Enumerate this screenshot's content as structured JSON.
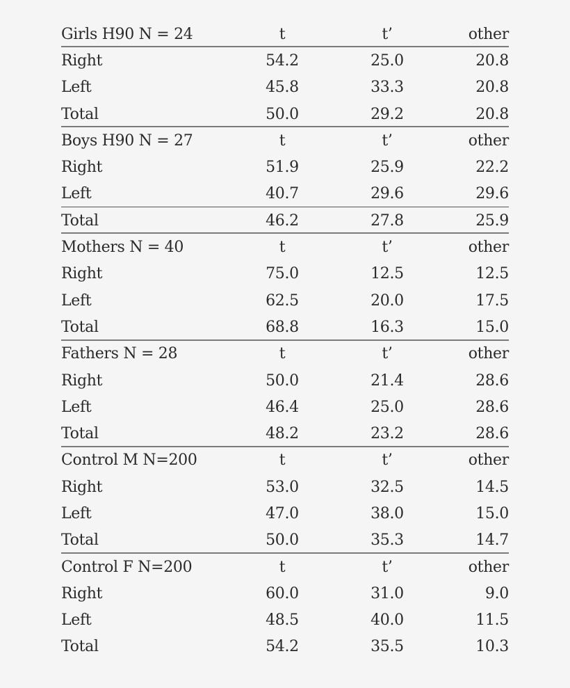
{
  "columns": [
    "t",
    "t’",
    "other"
  ],
  "groups": [
    {
      "header": "Girls H90 N = 24",
      "rows": [
        {
          "label": "Right",
          "t": "54.2",
          "tp": "25.0",
          "other": "20.8"
        },
        {
          "label": "Left",
          "t": "45.8",
          "tp": "33.3",
          "other": "20.8"
        },
        {
          "label": "Total",
          "t": "50.0",
          "tp": "29.2",
          "other": "20.8"
        }
      ]
    },
    {
      "header": "Boys H90 N = 27",
      "rows": [
        {
          "label": "Right",
          "t": "51.9",
          "tp": "25.9",
          "other": "22.2"
        },
        {
          "label": "Left",
          "t": "40.7",
          "tp": "29.6",
          "other": "29.6"
        },
        {
          "label": "Total",
          "t": "46.2",
          "tp": "27.8",
          "other": "25.9"
        }
      ]
    },
    {
      "header": "Mothers N = 40",
      "rows": [
        {
          "label": "Right",
          "t": "75.0",
          "tp": "12.5",
          "other": "12.5"
        },
        {
          "label": "Left",
          "t": "62.5",
          "tp": "20.0",
          "other": "17.5"
        },
        {
          "label": "Total",
          "t": "68.8",
          "tp": "16.3",
          "other": "15.0"
        }
      ]
    },
    {
      "header": "Fathers N = 28",
      "rows": [
        {
          "label": "Right",
          "t": "50.0",
          "tp": "21.4",
          "other": "28.6"
        },
        {
          "label": "Left",
          "t": "46.4",
          "tp": "25.0",
          "other": "28.6"
        },
        {
          "label": "Total",
          "t": "48.2",
          "tp": "23.2",
          "other": "28.6"
        }
      ]
    },
    {
      "header": "Control M N=200",
      "rows": [
        {
          "label": "Right",
          "t": "53.0",
          "tp": "32.5",
          "other": "14.5"
        },
        {
          "label": "Left",
          "t": "47.0",
          "tp": "38.0",
          "other": "15.0"
        },
        {
          "label": "Total",
          "t": "50.0",
          "tp": "35.3",
          "other": "14.7"
        }
      ]
    },
    {
      "header": "Control F N=200",
      "rows": [
        {
          "label": "Right",
          "t": "60.0",
          "tp": "31.0",
          "other": "9.0"
        },
        {
          "label": "Left",
          "t": "48.5",
          "tp": "40.0",
          "other": "11.5"
        },
        {
          "label": "Total",
          "t": "54.2",
          "tp": "35.5",
          "other": "10.3"
        }
      ]
    }
  ]
}
